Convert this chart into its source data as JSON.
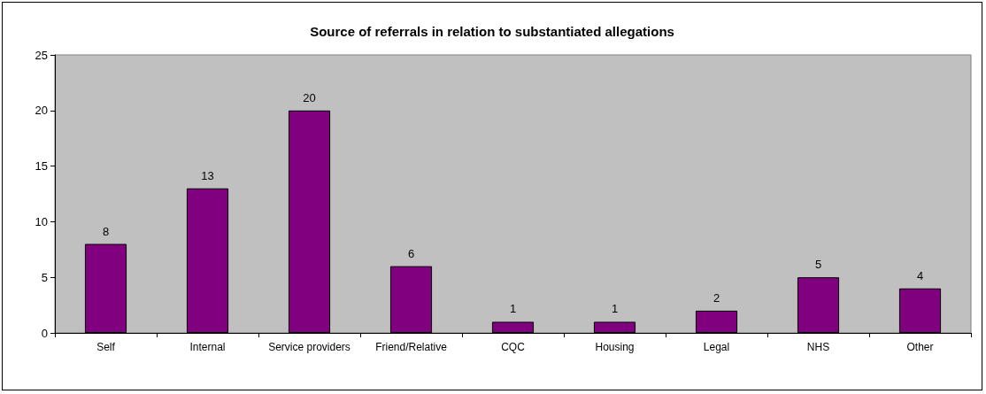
{
  "chart_data": {
    "type": "bar",
    "title": "Source of referrals in relation to substantiated allegations",
    "categories": [
      "Self",
      "Internal",
      "Service providers",
      "Friend/Relative",
      "CQC",
      "Housing",
      "Legal",
      "NHS",
      "Other"
    ],
    "values": [
      8,
      13,
      20,
      6,
      1,
      1,
      2,
      5,
      4
    ],
    "color": "#800080",
    "ylim": [
      0,
      25
    ],
    "yticks": [
      0,
      5,
      10,
      15,
      20,
      25
    ],
    "grid": false,
    "data_labels": true
  }
}
